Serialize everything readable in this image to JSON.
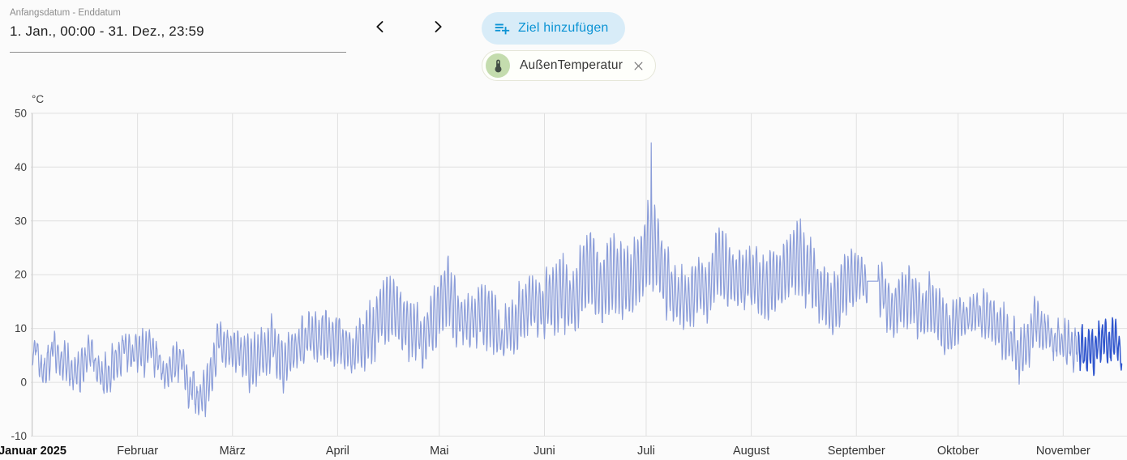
{
  "header": {
    "date_field": {
      "label": "Anfangsdatum - Enddatum",
      "value": "1. Jan., 00:00 - 31. Dez., 23:59"
    },
    "goal_button": {
      "label": "Ziel hinzufügen",
      "accent_color": "#0b93d4",
      "bg_color": "#d8ecf8"
    },
    "entity_chip": {
      "label": "AußenTemperatur",
      "avatar_color": "#c4dcae"
    }
  },
  "chart_data": {
    "type": "line",
    "title": "",
    "xlabel": "",
    "ylabel": "°C",
    "ylim": [
      -10,
      50
    ],
    "grid": true,
    "legend": "none",
    "y_ticks": [
      50,
      40,
      30,
      20,
      10,
      0,
      -10
    ],
    "x_ticks": [
      {
        "label": "Januar 2025",
        "day": 0,
        "bold": true
      },
      {
        "label": "Februar",
        "day": 31
      },
      {
        "label": "März",
        "day": 59
      },
      {
        "label": "April",
        "day": 90
      },
      {
        "label": "Mai",
        "day": 120
      },
      {
        "label": "Juni",
        "day": 151
      },
      {
        "label": "Juli",
        "day": 181
      },
      {
        "label": "August",
        "day": 212
      },
      {
        "label": "September",
        "day": 243
      },
      {
        "label": "Oktober",
        "day": 273
      },
      {
        "label": "November",
        "day": 304
      }
    ],
    "colors": {
      "grid": "#e0e0e0",
      "axis": "#c9c9c9"
    },
    "series": [
      {
        "name": "AußenTemperatur",
        "unit": "°C",
        "color_statistics": "#8b9dd9",
        "color_recent": "#2f55cd",
        "recent_from_day": 308.5,
        "end_day": 321.3,
        "samples_per_day": 8,
        "noise_seed": 7,
        "flat_segment": {
          "from_day": 246.2,
          "to_day": 249.4,
          "value": 18.8
        },
        "peak_spike": {
          "day": 182.55,
          "value": 44.5
        },
        "trend_anchors": [
          [
            0,
            7.5,
            2
          ],
          [
            2,
            3.5,
            2
          ],
          [
            4,
            2,
            2.5
          ],
          [
            6,
            7,
            2.5
          ],
          [
            9,
            3.5,
            2
          ],
          [
            12,
            3,
            2.5
          ],
          [
            14,
            1.5,
            2.5
          ],
          [
            17,
            5,
            2
          ],
          [
            19,
            3.5,
            2.5
          ],
          [
            22,
            1,
            2.5
          ],
          [
            24,
            2.5,
            3
          ],
          [
            27,
            7,
            3
          ],
          [
            29,
            5.5,
            2.5
          ],
          [
            31,
            5,
            2.5
          ],
          [
            34,
            6,
            3
          ],
          [
            37,
            3,
            2.5
          ],
          [
            40,
            1.5,
            3
          ],
          [
            44,
            4,
            2.5
          ],
          [
            47,
            -1.5,
            3.5
          ],
          [
            50,
            -3.5,
            3
          ],
          [
            53,
            1,
            3
          ],
          [
            55,
            8.5,
            3
          ],
          [
            58,
            5,
            3
          ],
          [
            61,
            5.5,
            3.5
          ],
          [
            64,
            3.5,
            4
          ],
          [
            68,
            6.5,
            4
          ],
          [
            71,
            7.5,
            4
          ],
          [
            74,
            3,
            4
          ],
          [
            77,
            5.5,
            4
          ],
          [
            80,
            8,
            3.5
          ],
          [
            84,
            8.5,
            3.5
          ],
          [
            88,
            8,
            3.5
          ],
          [
            91,
            7,
            4
          ],
          [
            94,
            5,
            3.5
          ],
          [
            97,
            7.5,
            4
          ],
          [
            100,
            9,
            4.5
          ],
          [
            103,
            12,
            5
          ],
          [
            106,
            14,
            5.5
          ],
          [
            109,
            11,
            5
          ],
          [
            112,
            9.5,
            4.5
          ],
          [
            115,
            8,
            4
          ],
          [
            118,
            10.5,
            5
          ],
          [
            121,
            15,
            6
          ],
          [
            123,
            16.5,
            6.5
          ],
          [
            126,
            12,
            4.5
          ],
          [
            129,
            11,
            4
          ],
          [
            132,
            13,
            5
          ],
          [
            135,
            12.5,
            5
          ],
          [
            138,
            8.5,
            3.5
          ],
          [
            141,
            10,
            4.5
          ],
          [
            144,
            12.5,
            5
          ],
          [
            147,
            15.5,
            5.5
          ],
          [
            150,
            14,
            5
          ],
          [
            153,
            15.5,
            5.5
          ],
          [
            156,
            17,
            6
          ],
          [
            159,
            15,
            5
          ],
          [
            162,
            18,
            6.5
          ],
          [
            165,
            21,
            7
          ],
          [
            168,
            17,
            5.5
          ],
          [
            171,
            20.5,
            7
          ],
          [
            174,
            18.5,
            6
          ],
          [
            177,
            19,
            6
          ],
          [
            180,
            22,
            7
          ],
          [
            182,
            27,
            8.5
          ],
          [
            184,
            24,
            7
          ],
          [
            187,
            19,
            5.5
          ],
          [
            190,
            16,
            4.5
          ],
          [
            193,
            15,
            4
          ],
          [
            196,
            18,
            5
          ],
          [
            199,
            16,
            4.5
          ],
          [
            202,
            22,
            6.5
          ],
          [
            204,
            21,
            6
          ],
          [
            207,
            19,
            5.5
          ],
          [
            210,
            19.5,
            5
          ],
          [
            213,
            20,
            5
          ],
          [
            216,
            17.5,
            4.5
          ],
          [
            219,
            18.5,
            5
          ],
          [
            222,
            20,
            5.5
          ],
          [
            225,
            24,
            6
          ],
          [
            227,
            23,
            6
          ],
          [
            230,
            19,
            5.5
          ],
          [
            233,
            17,
            5
          ],
          [
            236,
            15,
            4.5
          ],
          [
            239,
            17,
            5
          ],
          [
            242,
            18.5,
            4.5
          ],
          [
            245,
            19,
            4
          ],
          [
            250,
            17.5,
            4.5
          ],
          [
            253,
            14,
            4
          ],
          [
            256,
            14.5,
            4.5
          ],
          [
            259,
            15,
            5
          ],
          [
            262,
            12.5,
            4
          ],
          [
            265,
            14,
            5
          ],
          [
            268,
            11,
            4.5
          ],
          [
            270,
            9,
            4
          ],
          [
            273,
            11,
            4
          ],
          [
            276,
            12.5,
            3.5
          ],
          [
            279,
            13,
            3.5
          ],
          [
            282,
            12.5,
            3
          ],
          [
            285,
            10.5,
            3.5
          ],
          [
            288,
            8,
            3.5
          ],
          [
            291,
            5.5,
            4
          ],
          [
            294,
            8,
            4
          ],
          [
            296,
            11,
            3.5
          ],
          [
            299,
            9.5,
            3
          ],
          [
            302,
            8,
            3
          ],
          [
            305,
            6.5,
            3
          ],
          [
            308,
            7,
            3.5
          ],
          [
            311,
            5,
            3.5
          ],
          [
            314,
            6.5,
            3.5
          ],
          [
            317,
            8.5,
            3
          ],
          [
            319,
            7,
            3
          ],
          [
            321.3,
            5.5,
            3
          ]
        ]
      }
    ]
  }
}
